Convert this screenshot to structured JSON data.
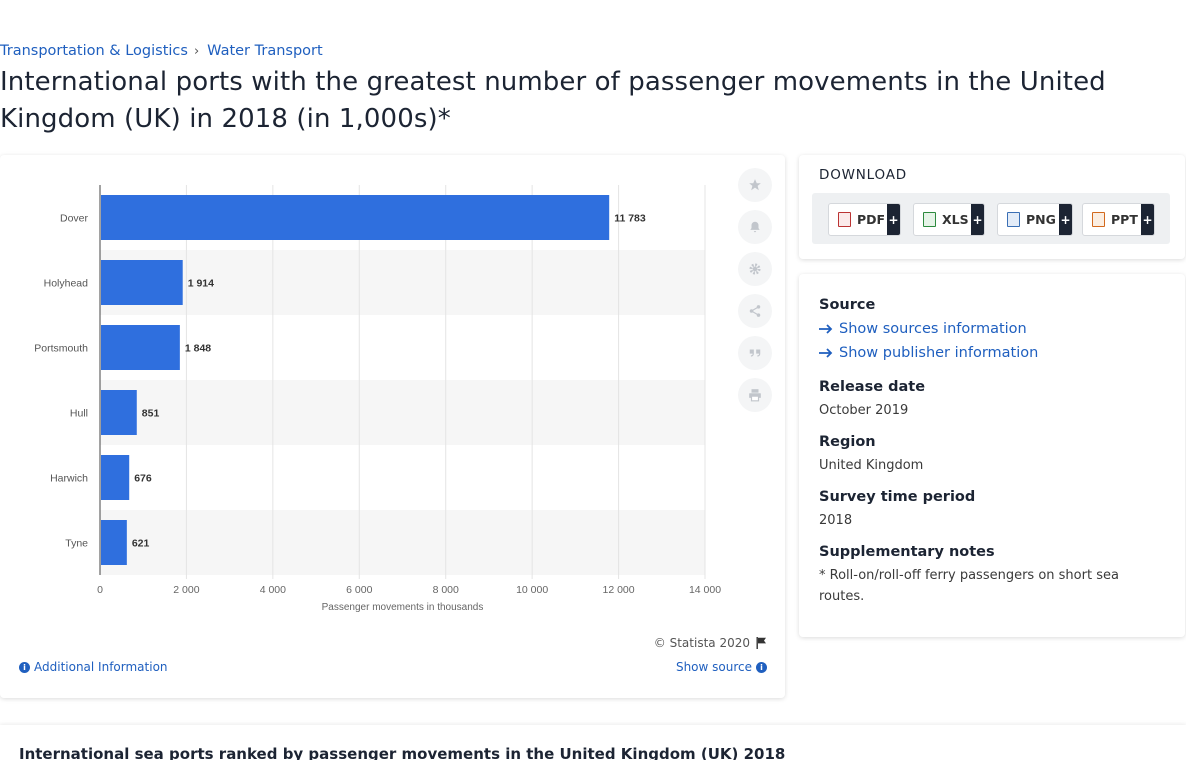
{
  "breadcrumb": {
    "item1": "Transportation & Logistics",
    "separator": "›",
    "item2": "Water Transport"
  },
  "page_title": "International ports with the greatest number of passenger movements in the United Kingdom (UK) in 2018 (in 1,000s)*",
  "chart_data": {
    "type": "bar",
    "orientation": "horizontal",
    "categories": [
      "Dover",
      "Holyhead",
      "Portsmouth",
      "Hull",
      "Harwich",
      "Tyne"
    ],
    "values": [
      11783,
      1914,
      1848,
      851,
      676,
      621
    ],
    "value_labels": [
      "11 783",
      "1 914",
      "1 848",
      "851",
      "676",
      "621"
    ],
    "xlabel": "Passenger movements in thousands",
    "xlim": [
      0,
      14000
    ],
    "x_ticks": [
      0,
      2000,
      4000,
      6000,
      8000,
      10000,
      12000,
      14000
    ],
    "x_tick_labels": [
      "0",
      "2 000",
      "4 000",
      "6 000",
      "8 000",
      "10 000",
      "12 000",
      "14 000"
    ],
    "grid": true,
    "bar_color": "#2f6fde"
  },
  "chart_footer": {
    "copyright": "© Statista 2020",
    "additional_info": "Additional Information",
    "show_source": "Show source"
  },
  "download": {
    "title": "DOWNLOAD",
    "buttons": [
      {
        "label": "PDF",
        "plus": "+"
      },
      {
        "label": "XLS",
        "plus": "+"
      },
      {
        "label": "PNG",
        "plus": "+"
      },
      {
        "label": "PPT",
        "plus": "+"
      }
    ]
  },
  "meta": {
    "source_label": "Source",
    "show_sources": "Show sources information",
    "show_publisher": "Show publisher information",
    "release_label": "Release date",
    "release_value": "October 2019",
    "region_label": "Region",
    "region_value": "United Kingdom",
    "survey_label": "Survey time period",
    "survey_value": "2018",
    "notes_label": "Supplementary notes",
    "notes_value": "* Roll-on/roll-off ferry passengers on short sea routes."
  },
  "bottom": {
    "title": "International sea ports ranked by passenger movements in the United Kingdom (UK) 2018"
  },
  "icons": {
    "star": "star-icon",
    "bell": "bell-icon",
    "gear": "gear-icon",
    "share": "share-icon",
    "quote": "quote-icon",
    "print": "print-icon",
    "flag": "flag-icon",
    "info": "info-icon",
    "arrow": "arrow-right-icon"
  }
}
